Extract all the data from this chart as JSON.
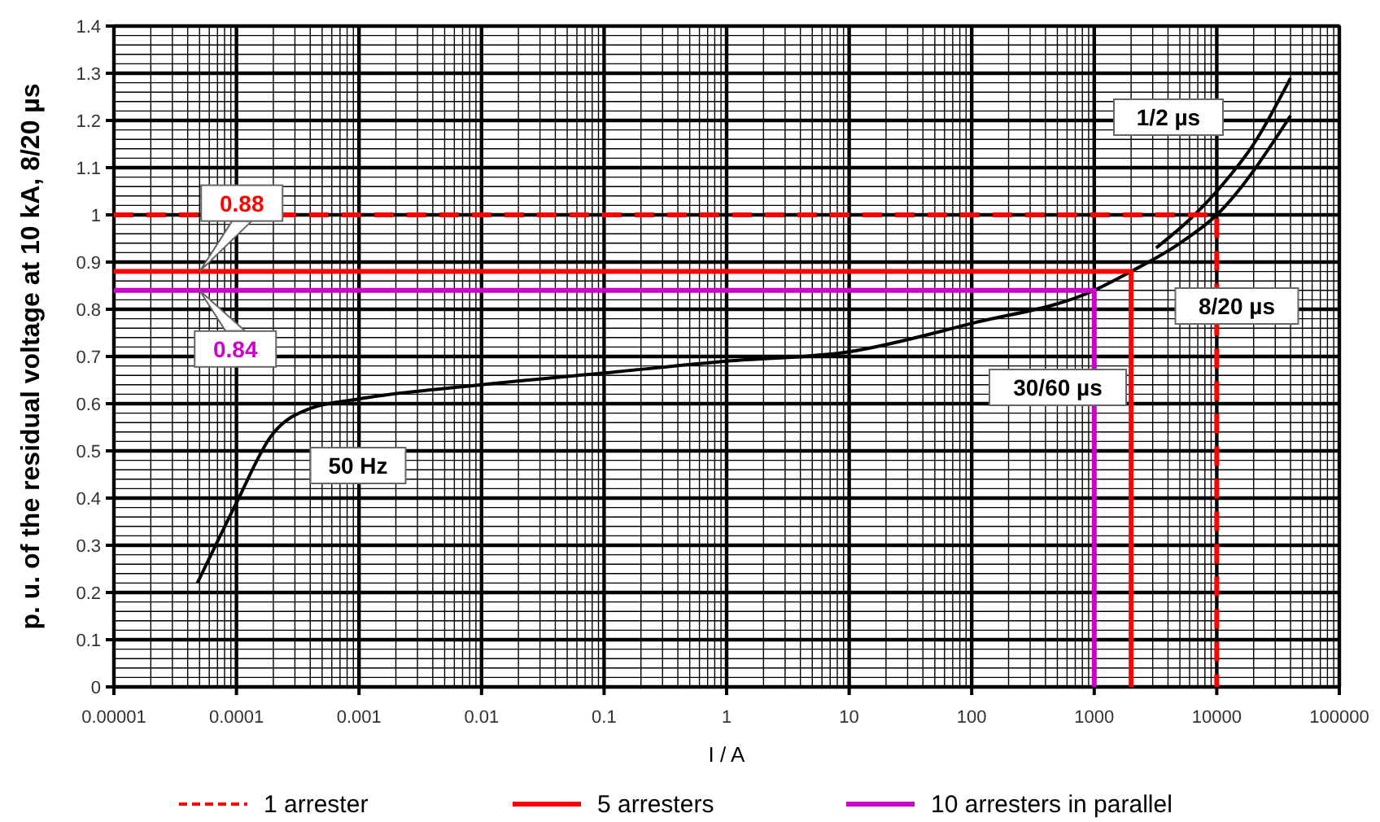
{
  "chart_data": {
    "type": "line",
    "xlabel": "I / A",
    "ylabel": "p. u. of the residual voltage  at 10 kA, 8/20 µs",
    "log": "x",
    "grid": true,
    "legend": "bottom",
    "xlim": [
      1e-05,
      100000
    ],
    "xticks": [
      {
        "value": 1e-05,
        "label": "0.00001"
      },
      0.0001,
      0.001,
      0.01,
      0.1,
      1,
      10,
      100,
      1000,
      10000,
      100000
    ],
    "ylim": [
      0,
      1.4
    ],
    "yticks": [
      0,
      0.1,
      0.2,
      0.3,
      0.4,
      0.5,
      0.6,
      0.7,
      0.8,
      0.9,
      1,
      1.1,
      1.2,
      1.3,
      1.4
    ],
    "series": [
      {
        "color": "#000000",
        "line_style": "solid",
        "x": [
          4.8e-05,
          0.0001,
          0.00019,
          0.0004,
          0.001,
          0.01,
          0.1,
          1,
          10,
          100,
          1000,
          2000,
          5000,
          10000,
          40000
        ],
        "values": [
          0.22,
          0.39,
          0.53,
          0.59,
          0.61,
          0.64,
          0.665,
          0.69,
          0.71,
          0.77,
          0.84,
          0.88,
          0.94,
          1.0,
          1.21
        ]
      },
      {
        "color": "#000000",
        "line_style": "solid",
        "x": [
          3200,
          6000,
          10000,
          20000,
          40000
        ],
        "values": [
          0.93,
          0.99,
          1.05,
          1.15,
          1.29
        ]
      },
      {
        "name": "1 arrester",
        "color": "#ff0000",
        "line_style": "dashed",
        "x": [
          1e-05,
          10000,
          10000
        ],
        "values": [
          1,
          1,
          0
        ]
      },
      {
        "name": "5 arresters",
        "color": "#ff0000",
        "line_style": "solid",
        "x": [
          1e-05,
          2000,
          2000
        ],
        "values": [
          0.88,
          0.88,
          0
        ]
      },
      {
        "name": "10 arresters in parallel",
        "color": "#cc00cc",
        "line_style": "solid",
        "x": [
          1e-05,
          1000,
          1000
        ],
        "values": [
          0.84,
          0.84,
          0
        ]
      }
    ],
    "annotations": [
      {
        "text": "0.88",
        "x": 5e-05,
        "y": 0.88
      },
      {
        "text": "0.84",
        "x": 5e-05,
        "y": 0.84
      },
      "50 Hz",
      "30/60 µs",
      "8/20 µs",
      "1/2 µs"
    ]
  }
}
